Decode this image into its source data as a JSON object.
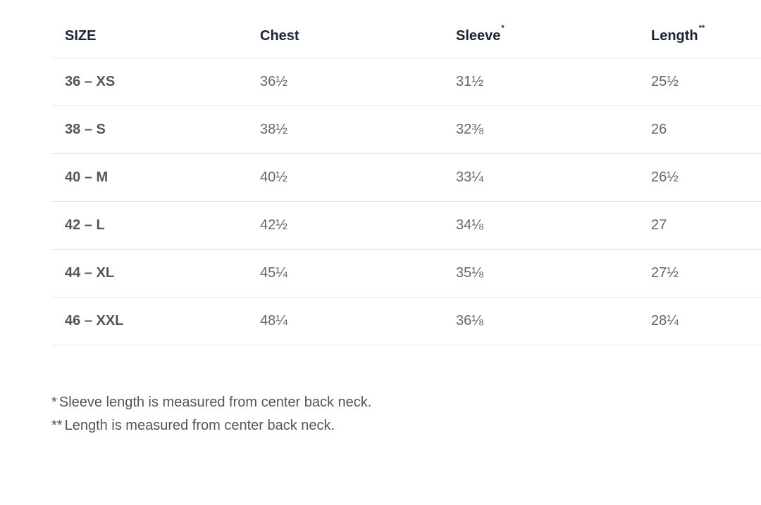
{
  "table": {
    "headers": [
      {
        "text": "SIZE"
      },
      {
        "text": "Chest"
      },
      {
        "text": "Sleeve",
        "note": "*"
      },
      {
        "text": "Length",
        "note": "**"
      }
    ],
    "rows": [
      [
        "36 – XS",
        "36½",
        "31½",
        "25½"
      ],
      [
        "38 – S",
        "38½",
        "32⅜",
        "26"
      ],
      [
        "40 – M",
        "40½",
        "33¼",
        "26½"
      ],
      [
        "42 – L",
        "42½",
        "34⅛",
        "27"
      ],
      [
        "44 – XL",
        "45¼",
        "35⅛",
        "27½"
      ],
      [
        "46 – XXL",
        "48¼",
        "36⅛",
        "28¼"
      ]
    ]
  },
  "footnotes": [
    {
      "mark": "*",
      "text": "Sleeve length is measured from center back neck."
    },
    {
      "mark": "**",
      "text": "Length is measured from center back neck."
    }
  ]
}
